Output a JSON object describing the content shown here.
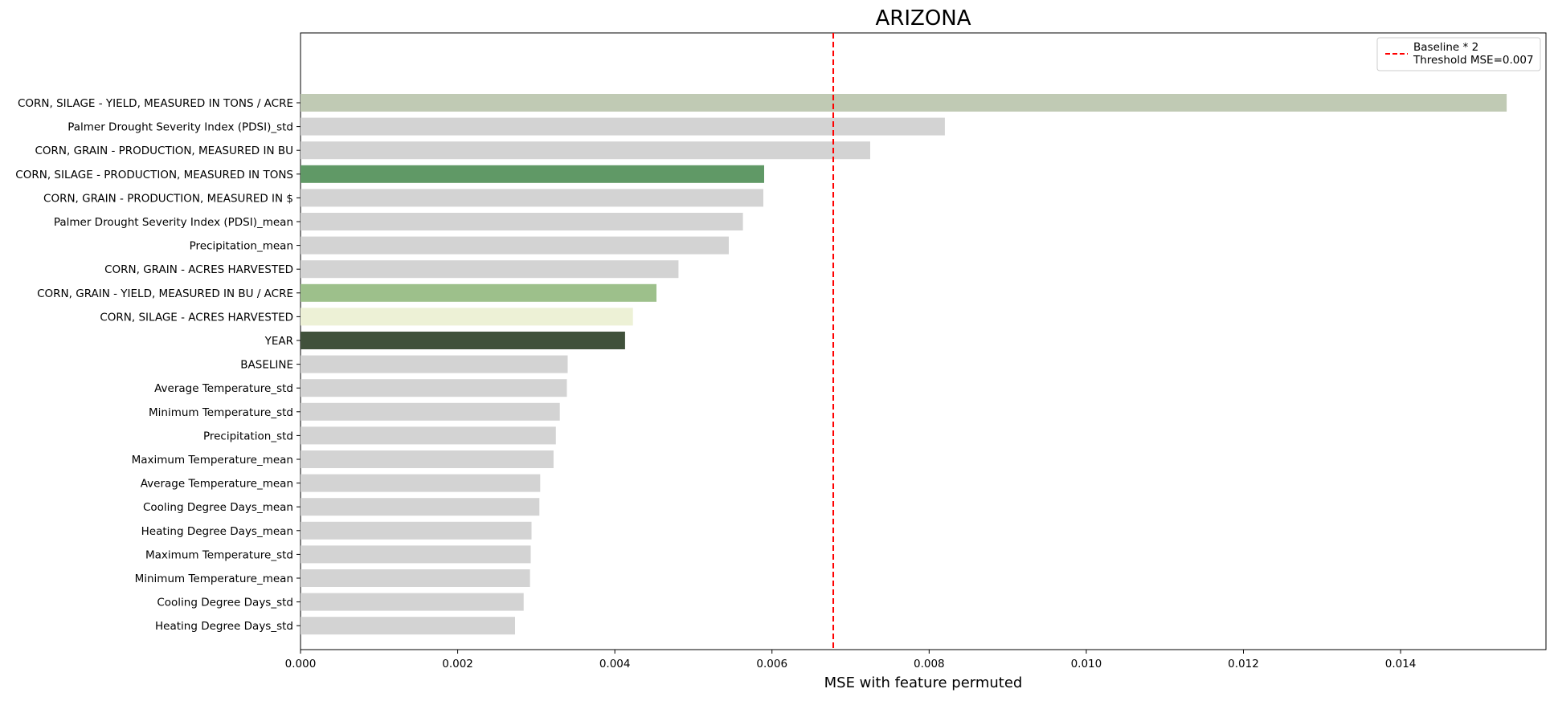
{
  "chart_data": {
    "type": "bar",
    "orientation": "horizontal",
    "title": "ARIZONA",
    "xlabel": "MSE with feature permuted",
    "ylabel": "",
    "xlim": [
      0,
      0.01585
    ],
    "x_ticks": [
      0.0,
      0.002,
      0.004,
      0.006,
      0.008,
      0.01,
      0.012,
      0.014
    ],
    "x_tick_labels": [
      "0.000",
      "0.002",
      "0.004",
      "0.006",
      "0.008",
      "0.010",
      "0.012",
      "0.014"
    ],
    "grid": false,
    "legend_position": "top-right",
    "categories": [
      "CORN, SILAGE - YIELD, MEASURED IN TONS / ACRE",
      "Palmer Drought Severity Index (PDSI)_std",
      "CORN, GRAIN - PRODUCTION, MEASURED IN BU",
      "CORN, SILAGE - PRODUCTION, MEASURED IN TONS",
      "CORN, GRAIN - PRODUCTION, MEASURED IN $",
      "Palmer Drought Severity Index (PDSI)_mean",
      "Precipitation_mean",
      "CORN, GRAIN - ACRES HARVESTED",
      "CORN, GRAIN - YIELD, MEASURED IN BU / ACRE",
      "CORN, SILAGE - ACRES HARVESTED",
      "YEAR",
      "BASELINE",
      "Average Temperature_std",
      "Minimum Temperature_std",
      "Precipitation_std",
      "Maximum Temperature_mean",
      "Average Temperature_mean",
      "Cooling Degree Days_mean",
      "Heating Degree Days_mean",
      "Maximum Temperature_std",
      "Minimum Temperature_mean",
      "Cooling Degree Days_std",
      "Heating Degree Days_std"
    ],
    "values": [
      0.01535,
      0.0082,
      0.00725,
      0.0059,
      0.00589,
      0.00563,
      0.00545,
      0.00481,
      0.00453,
      0.00423,
      0.00413,
      0.0034,
      0.00339,
      0.0033,
      0.00325,
      0.00322,
      0.00305,
      0.00304,
      0.00294,
      0.00293,
      0.00292,
      0.00284,
      0.00273
    ],
    "bar_colors": [
      "#c0cab4",
      "#d3d3d3",
      "#d3d3d3",
      "#609966",
      "#d3d3d3",
      "#d3d3d3",
      "#d3d3d3",
      "#d3d3d3",
      "#9dc08b",
      "#edf1d6",
      "#40513b",
      "#d3d3d3",
      "#d3d3d3",
      "#d3d3d3",
      "#d3d3d3",
      "#d3d3d3",
      "#d3d3d3",
      "#d3d3d3",
      "#d3d3d3",
      "#d3d3d3",
      "#d3d3d3",
      "#d3d3d3",
      "#d3d3d3"
    ],
    "reference_line": {
      "x": 0.00678,
      "color": "#ff0000",
      "style": "dashed",
      "legend_label_line1": "Baseline * 2",
      "legend_label_line2": "Threshold MSE=0.007"
    }
  }
}
